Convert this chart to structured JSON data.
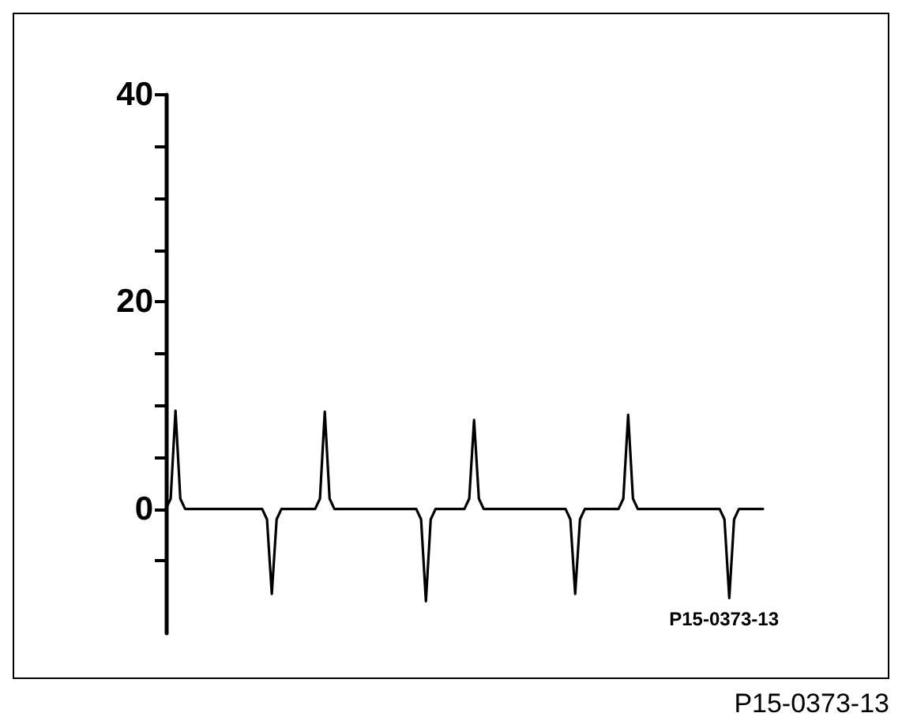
{
  "chart_data": {
    "type": "line",
    "categories": [
      null,
      null,
      null,
      null,
      null,
      null,
      null,
      null,
      null,
      null,
      null,
      null,
      null,
      null,
      null,
      null,
      null,
      null,
      null,
      null,
      null,
      null,
      null,
      null,
      null,
      null,
      null,
      null,
      null,
      null,
      null,
      null,
      null,
      null,
      null,
      null,
      null,
      null,
      null,
      null,
      null,
      null,
      null,
      null,
      null,
      null,
      null,
      null,
      null,
      null,
      null,
      null,
      null,
      null,
      null,
      null,
      null,
      null,
      null,
      null,
      null,
      null,
      null,
      null,
      null,
      null,
      null,
      null,
      null,
      null,
      null,
      null,
      null,
      null,
      null,
      null,
      null,
      null,
      null,
      null,
      null,
      null,
      null,
      null,
      null,
      null,
      null,
      null,
      null,
      null,
      null,
      null,
      null,
      null,
      null,
      null,
      null,
      null,
      null,
      null,
      null,
      null,
      null,
      null,
      null,
      null,
      null,
      null,
      null,
      null,
      null,
      null,
      null,
      null,
      null,
      null,
      null,
      null,
      null,
      null,
      null,
      null,
      null,
      null,
      null
    ],
    "series": [
      {
        "color": "#000000",
        "values": [
          0,
          1,
          9.5,
          1,
          0,
          0,
          0,
          0,
          0,
          0,
          0,
          0,
          0,
          0,
          0,
          0,
          0,
          0,
          0,
          0,
          0,
          -1,
          -8.2,
          -1,
          0,
          0,
          0,
          0,
          0,
          0,
          0,
          0,
          1,
          9.4,
          1,
          0,
          0,
          0,
          0,
          0,
          0,
          0,
          0,
          0,
          0,
          0,
          0,
          0,
          0,
          0,
          0,
          0,
          0,
          -1,
          -8.9,
          -1,
          0,
          0,
          0,
          0,
          0,
          0,
          0,
          1,
          8.6,
          1,
          0,
          0,
          0,
          0,
          0,
          0,
          0,
          0,
          0,
          0,
          0,
          0,
          0,
          0,
          0,
          0,
          0,
          0,
          -1,
          -8.2,
          -1,
          0,
          0,
          0,
          0,
          0,
          0,
          0,
          0,
          1,
          9.1,
          1,
          0,
          0,
          0,
          0,
          0,
          0,
          0,
          0,
          0,
          0,
          0,
          0,
          0,
          0,
          0,
          0,
          0,
          0,
          -1,
          -8.6,
          -1,
          0,
          0,
          0,
          0,
          0,
          0
        ]
      }
    ],
    "ylim": [
      -12,
      40
    ],
    "yticks": [
      {
        "value": -5,
        "label": null
      },
      0,
      {
        "value": 5,
        "label": null
      },
      {
        "value": 10,
        "label": null
      },
      {
        "value": 15,
        "label": null
      },
      20,
      {
        "value": 25,
        "label": null
      },
      {
        "value": 30,
        "label": null
      },
      {
        "value": 35,
        "label": null
      },
      40
    ],
    "tick_labels": "y",
    "grid": false,
    "line_style": "solid",
    "annotations": [
      "P15-0373-13",
      "P15-0373-13"
    ]
  }
}
